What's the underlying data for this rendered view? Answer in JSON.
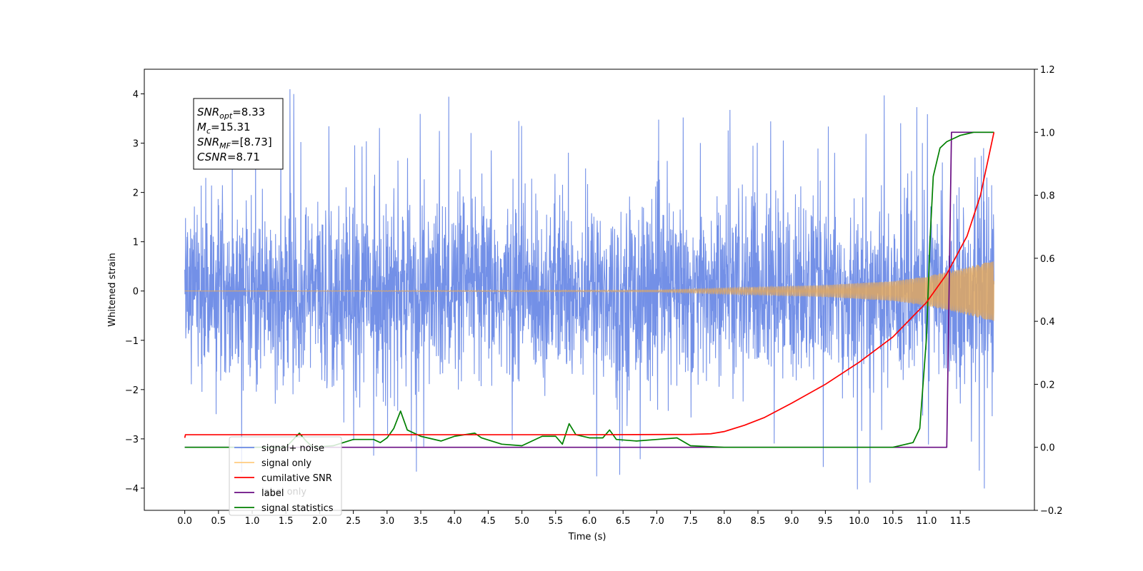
{
  "chart_data": {
    "type": "line",
    "xlabel": "Time (s)",
    "ylabel_left": "Whitened strain",
    "xlim": [
      -0.6,
      12.6
    ],
    "ylim_left": [
      -4.45,
      4.5
    ],
    "ylim_right": [
      -0.2,
      1.2
    ],
    "x_ticks": [
      0.0,
      0.5,
      1.0,
      1.5,
      2.0,
      2.5,
      3.0,
      3.5,
      4.0,
      4.5,
      5.0,
      5.5,
      6.0,
      6.5,
      7.0,
      7.5,
      8.0,
      8.5,
      9.0,
      9.5,
      10.0,
      10.5,
      11.0,
      11.5
    ],
    "x_tick_labels": [
      "0.0",
      "0.5",
      "1.0",
      "1.5",
      "2.0",
      "2.5",
      "3.0",
      "3.5",
      "4.0",
      "4.5",
      "5.0",
      "5.5",
      "6.0",
      "6.5",
      "7.0",
      "7.5",
      "8.0",
      "8.5",
      "9.0",
      "9.5",
      "10.0",
      "10.5",
      "11.0",
      "11.5"
    ],
    "y_left_ticks": [
      -4,
      -3,
      -2,
      -1,
      0,
      1,
      2,
      3,
      4
    ],
    "y_left_tick_labels": [
      "−4",
      "−3",
      "−2",
      "−1",
      "0",
      "1",
      "2",
      "3",
      "4"
    ],
    "y_right_ticks": [
      -0.2,
      0.0,
      0.2,
      0.4,
      0.6,
      0.8,
      1.0,
      1.2
    ],
    "y_right_tick_labels": [
      "−0.2",
      "0.0",
      "0.2",
      "0.4",
      "0.6",
      "0.8",
      "1.0",
      "1.2"
    ],
    "legend_position": "lower-left",
    "series": [
      {
        "name": "signal+ noise",
        "axis": "left",
        "color": "#6b8ae6",
        "style": "noise",
        "x_range": [
          0.0,
          12.0
        ],
        "typical_amplitude": 2.0,
        "peak_amplitude": 4.1
      },
      {
        "name": "signal only",
        "axis": "left",
        "color": "#e0a860",
        "style": "chirp",
        "x_range": [
          0.0,
          12.0
        ],
        "amplitude_points": [
          [
            0.0,
            0.0
          ],
          [
            7.0,
            0.02
          ],
          [
            8.5,
            0.08
          ],
          [
            9.5,
            0.12
          ],
          [
            10.5,
            0.2
          ],
          [
            11.0,
            0.3
          ],
          [
            11.5,
            0.45
          ],
          [
            12.0,
            0.62
          ]
        ]
      },
      {
        "name": "cumilative SNR",
        "axis": "right",
        "color": "#ff0000",
        "x": [
          0.0,
          0.01,
          2.0,
          4.0,
          6.0,
          7.5,
          7.8,
          8.0,
          8.3,
          8.6,
          9.0,
          9.5,
          10.0,
          10.5,
          11.0,
          11.3,
          11.6,
          11.8,
          12.0
        ],
        "y": [
          0.03,
          0.04,
          0.04,
          0.04,
          0.04,
          0.041,
          0.043,
          0.05,
          0.07,
          0.095,
          0.14,
          0.2,
          0.27,
          0.35,
          0.46,
          0.55,
          0.67,
          0.8,
          1.0
        ]
      },
      {
        "name": "label",
        "axis": "right",
        "color": "#6a0d83",
        "x": [
          0.0,
          11.3,
          11.37,
          12.0
        ],
        "y": [
          0.0,
          0.0,
          1.0,
          1.0
        ]
      },
      {
        "name": "signal statistics",
        "axis": "right",
        "color": "#008000",
        "x": [
          0.0,
          1.5,
          1.7,
          1.8,
          1.9,
          2.2,
          2.5,
          2.8,
          2.9,
          3.0,
          3.1,
          3.2,
          3.3,
          3.5,
          3.8,
          4.0,
          4.3,
          4.4,
          4.7,
          5.0,
          5.3,
          5.5,
          5.6,
          5.7,
          5.8,
          6.0,
          6.2,
          6.3,
          6.4,
          6.7,
          7.0,
          7.3,
          7.5,
          8.0,
          10.5,
          10.8,
          10.9,
          11.0,
          11.05,
          11.1,
          11.2,
          11.3,
          11.4,
          11.5,
          11.6,
          11.7,
          12.0
        ],
        "y": [
          0.0,
          0.0,
          0.045,
          0.02,
          0.0,
          0.005,
          0.025,
          0.025,
          0.015,
          0.03,
          0.06,
          0.115,
          0.055,
          0.035,
          0.02,
          0.035,
          0.045,
          0.03,
          0.01,
          0.005,
          0.035,
          0.035,
          0.01,
          0.075,
          0.04,
          0.03,
          0.03,
          0.055,
          0.025,
          0.02,
          0.025,
          0.03,
          0.005,
          0.0,
          0.0,
          0.015,
          0.06,
          0.35,
          0.65,
          0.86,
          0.95,
          0.97,
          0.98,
          0.99,
          0.995,
          1.0,
          1.0
        ]
      }
    ],
    "legend_items": [
      {
        "label": "signal+ noise",
        "color": "#6b8ae6"
      },
      {
        "label": "signal only",
        "color": "#ffcc80"
      },
      {
        "label": "cumilative SNR",
        "color": "#ff0000"
      },
      {
        "label": "label",
        "color": "#6a0d83"
      },
      {
        "label": "signal statistics",
        "color": "#008000"
      }
    ],
    "hidden_legend_text": "label only",
    "annotation": {
      "lines": [
        {
          "var": "SNR",
          "sub": "opt",
          "text": "=8.33"
        },
        {
          "var": "M",
          "sub": "c",
          "text": "=15.31"
        },
        {
          "var": "SNR",
          "sub": "MF",
          "text": "=[8.73]"
        },
        {
          "var": "CSNR",
          "sub": "",
          "text": "=8.71"
        }
      ]
    }
  }
}
